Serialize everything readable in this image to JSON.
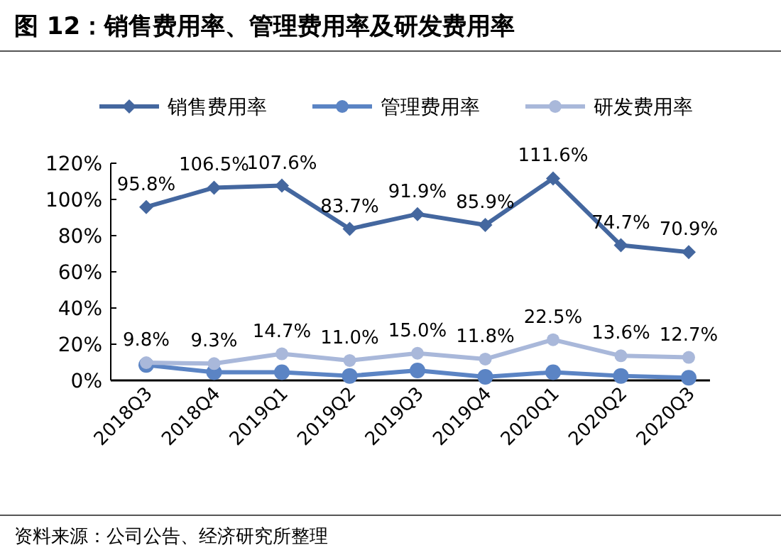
{
  "chart_data": {
    "type": "line",
    "title": "图 12：销售费用率、管理费用率及研发费用率",
    "categories": [
      "2018Q3",
      "2018Q4",
      "2019Q1",
      "2019Q2",
      "2019Q3",
      "2019Q4",
      "2020Q1",
      "2020Q2",
      "2020Q3"
    ],
    "series": [
      {
        "name": "销售费用率",
        "color": "#44679f",
        "marker": "diamond",
        "values": [
          95.8,
          106.5,
          107.6,
          83.7,
          91.9,
          85.9,
          111.6,
          74.7,
          70.9
        ],
        "value_labels": [
          "95.8%",
          "106.5%",
          "107.6%",
          "83.7%",
          "91.9%",
          "85.9%",
          "111.6%",
          "74.7%",
          "70.9%"
        ]
      },
      {
        "name": "管理费用率",
        "color": "#5b84c4",
        "marker": "circle",
        "values": [
          8.5,
          4.5,
          4.5,
          2.5,
          5.5,
          2,
          4.5,
          2.5,
          1.5
        ]
      },
      {
        "name": "研发费用率",
        "color": "#a9b8da",
        "marker": "circle",
        "values": [
          9.8,
          9.3,
          14.7,
          11.0,
          15.0,
          11.8,
          22.5,
          13.6,
          12.7
        ],
        "value_labels": [
          "9.8%",
          "9.3%",
          "14.7%",
          "11.0%",
          "15.0%",
          "11.8%",
          "22.5%",
          "13.6%",
          "12.7%"
        ]
      }
    ],
    "ylim": [
      0,
      120
    ],
    "yticks": [
      {
        "value": 0,
        "label": "0%"
      },
      {
        "value": 20,
        "label": "20%"
      },
      {
        "value": 40,
        "label": "40%"
      },
      {
        "value": 60,
        "label": "60%"
      },
      {
        "value": 80,
        "label": "80%"
      },
      {
        "value": 100,
        "label": "100%"
      },
      {
        "value": 120,
        "label": "120%"
      }
    ],
    "grid": false,
    "legend": "top",
    "line_style": "solid",
    "annotations": [
      "资料来源：公司公告、经济研究所整理"
    ]
  }
}
